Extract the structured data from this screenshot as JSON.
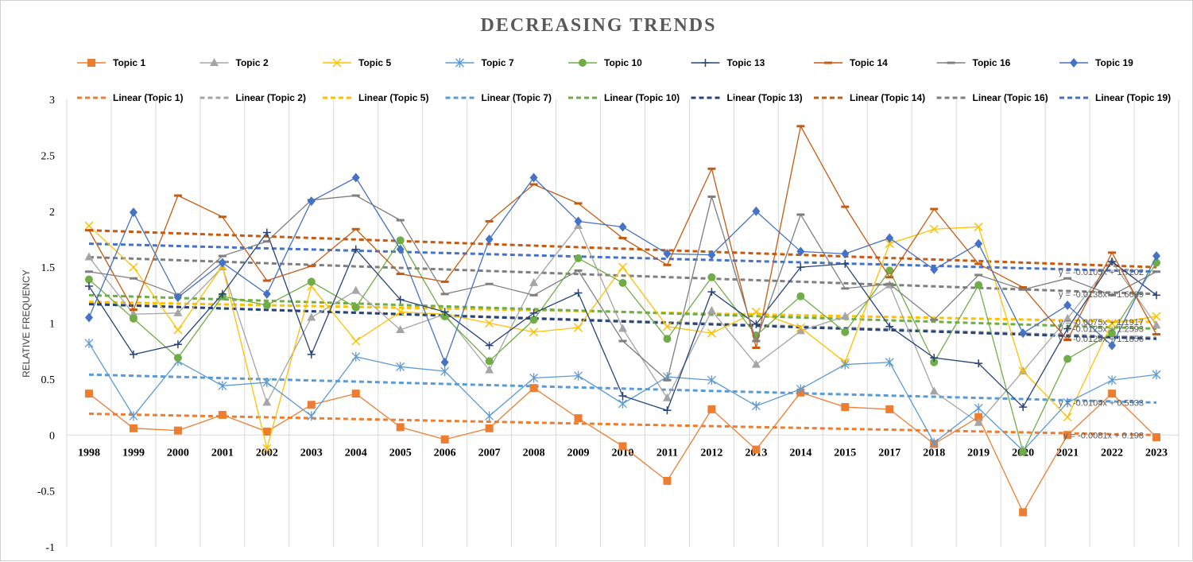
{
  "chart_data": {
    "type": "line",
    "title": "DECREASING TRENDS",
    "xlabel": "",
    "ylabel": "RELATIVE FREQUENCY",
    "ylim": [
      -1,
      3
    ],
    "yticks": [
      "-1",
      "-0.5",
      "0",
      "0.5",
      "1",
      "1.5",
      "2",
      "2.5",
      "3"
    ],
    "grid": "vertical",
    "legend_position": "top",
    "categories": [
      "1998",
      "1999",
      "2000",
      "2001",
      "2002",
      "2003",
      "2004",
      "2005",
      "2006",
      "2007",
      "2008",
      "2009",
      "2010",
      "2011",
      "2012",
      "2013",
      "2014",
      "2015",
      "2017",
      "2018",
      "2019",
      "2020",
      "2021",
      "2022",
      "2023"
    ],
    "series": [
      {
        "name": "Topic 1",
        "color": "#ED7D31",
        "marker": "square",
        "values": [
          0.37,
          0.06,
          0.04,
          0.18,
          0.03,
          0.27,
          0.37,
          0.07,
          -0.04,
          0.06,
          0.42,
          0.15,
          -0.1,
          -0.41,
          0.23,
          -0.13,
          0.38,
          0.25,
          0.23,
          -0.08,
          0.16,
          -0.69,
          0.0,
          0.37,
          -0.02
        ]
      },
      {
        "name": "Topic 2",
        "color": "#A5A5A5",
        "marker": "triangle",
        "values": [
          1.59,
          1.08,
          1.09,
          1.5,
          0.29,
          1.05,
          1.29,
          0.94,
          1.08,
          0.58,
          1.36,
          1.87,
          0.95,
          0.33,
          1.11,
          0.63,
          0.93,
          1.06,
          1.34,
          0.39,
          0.11,
          0.57,
          1.04,
          1.55,
          0.98
        ]
      },
      {
        "name": "Topic 5",
        "color": "#FFC000",
        "marker": "x",
        "values": [
          1.87,
          1.5,
          0.94,
          1.51,
          -0.12,
          1.33,
          0.84,
          1.1,
          1.08,
          1.0,
          0.92,
          0.96,
          1.5,
          0.97,
          0.91,
          1.1,
          0.96,
          0.65,
          1.71,
          1.84,
          1.86,
          0.57,
          0.16,
          1.0,
          1.06
        ]
      },
      {
        "name": "Topic 7",
        "color": "#5B9BD5",
        "marker": "star",
        "values": [
          0.82,
          0.17,
          0.66,
          0.44,
          0.47,
          0.17,
          0.7,
          0.61,
          0.57,
          0.17,
          0.51,
          0.53,
          0.28,
          0.52,
          0.49,
          0.26,
          0.41,
          0.63,
          0.65,
          -0.07,
          0.24,
          -0.14,
          0.29,
          0.49,
          0.54
        ]
      },
      {
        "name": "Topic 10",
        "color": "#70AD47",
        "marker": "circle",
        "values": [
          1.39,
          1.04,
          0.69,
          1.24,
          1.16,
          1.37,
          1.14,
          1.74,
          1.06,
          0.66,
          1.03,
          1.58,
          1.36,
          0.86,
          1.41,
          0.89,
          1.24,
          0.92,
          1.47,
          0.65,
          1.34,
          -0.15,
          0.68,
          0.91,
          1.54
        ]
      },
      {
        "name": "Topic 13",
        "color": "#264478",
        "marker": "plus",
        "values": [
          1.33,
          0.72,
          0.81,
          1.26,
          1.81,
          0.72,
          1.66,
          1.21,
          1.1,
          0.8,
          1.09,
          1.27,
          0.35,
          0.22,
          1.28,
          0.99,
          1.5,
          1.53,
          0.97,
          0.69,
          0.64,
          0.25,
          0.95,
          1.55,
          1.25
        ]
      },
      {
        "name": "Topic 14",
        "color": "#C55A11",
        "marker": "dash",
        "values": [
          1.83,
          1.12,
          2.14,
          1.95,
          1.38,
          1.51,
          1.84,
          1.44,
          1.37,
          1.91,
          2.24,
          2.07,
          1.76,
          1.52,
          2.38,
          0.78,
          2.76,
          2.04,
          1.41,
          2.02,
          1.53,
          1.32,
          0.85,
          1.63,
          0.9
        ]
      },
      {
        "name": "Topic 16",
        "color": "#7F7F7F",
        "marker": "dash",
        "values": [
          1.46,
          1.4,
          1.25,
          1.6,
          1.73,
          2.1,
          2.14,
          1.92,
          1.26,
          1.35,
          1.25,
          1.47,
          0.84,
          0.49,
          2.13,
          0.84,
          1.97,
          1.31,
          1.35,
          1.03,
          1.43,
          1.3,
          1.4,
          1.25,
          1.46
        ]
      },
      {
        "name": "Topic 19",
        "color": "#4472C4",
        "marker": "diamond",
        "values": [
          1.05,
          1.99,
          1.23,
          1.54,
          1.26,
          2.09,
          2.3,
          1.66,
          0.65,
          1.75,
          2.3,
          1.91,
          1.86,
          1.62,
          1.61,
          2.0,
          1.64,
          1.62,
          1.76,
          1.48,
          1.71,
          0.91,
          1.16,
          0.8,
          1.6
        ]
      }
    ],
    "trendlines": [
      {
        "name": "Linear (Topic 1)",
        "color": "#ED7D31",
        "start": 0.19,
        "end": 0.0,
        "equation": "y = -0.0081x + 0.198"
      },
      {
        "name": "Linear (Topic 2)",
        "color": "#A5A5A5",
        "start": 1.17,
        "end": 0.87,
        "equation": ""
      },
      {
        "name": "Linear (Topic 5)",
        "color": "#FFC000",
        "start": 1.19,
        "end": 1.01,
        "equation": "y = -0.0075x + 1.1917"
      },
      {
        "name": "Linear (Topic 7)",
        "color": "#5B9BD5",
        "start": 0.54,
        "end": 0.29,
        "equation": "y = -0.0104x + 0.5533"
      },
      {
        "name": "Linear (Topic 10)",
        "color": "#70AD47",
        "start": 1.25,
        "end": 0.95,
        "equation": "y = -0.0125x + 1.2593"
      },
      {
        "name": "Linear (Topic 13)",
        "color": "#264478",
        "start": 1.17,
        "end": 0.86,
        "equation": "y = -0.0129x + 1.1856"
      },
      {
        "name": "Linear (Topic 14)",
        "color": "#C55A11",
        "start": 1.83,
        "end": 1.5,
        "equation": ""
      },
      {
        "name": "Linear (Topic 16)",
        "color": "#7F7F7F",
        "start": 1.59,
        "end": 1.26,
        "equation": "y = -0.0138x + 1.6089"
      },
      {
        "name": "Linear (Topic 19)",
        "color": "#4472C4",
        "start": 1.71,
        "end": 1.46,
        "equation": "y = -0.0105x + 1.7202"
      }
    ]
  }
}
